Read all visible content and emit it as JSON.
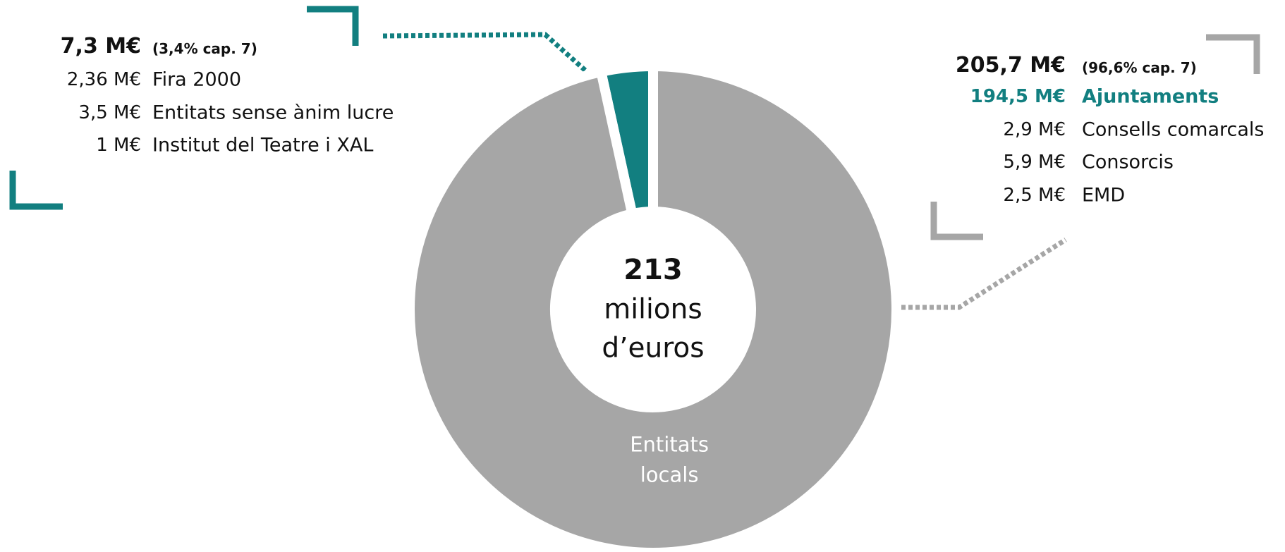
{
  "chart_data": {
    "type": "pie",
    "donut": true,
    "categories": [
      null,
      "Entitats locals"
    ],
    "values": [
      7.3,
      205.7
    ],
    "value_labels": [
      "7,3 M€",
      "205,7 M€"
    ],
    "colors": [
      "#127f80",
      "#a6a6a6"
    ],
    "shares": [
      "(3,4% cap. 7)",
      "(96,6% cap. 7)"
    ],
    "breakdowns": [
      [
        {
          "value": "2,36 M€",
          "label": "Fira 2000"
        },
        {
          "value": "3,5 M€",
          "label": "Entitats sense ànim lucre"
        },
        {
          "value": "1 M€",
          "label": "Institut del Teatre i XAL"
        }
      ],
      [
        {
          "value": "194,5 M€",
          "label": "Ajuntaments",
          "highlight": true
        },
        {
          "value": "2,9 M€",
          "label": "Consells comarcals"
        },
        {
          "value": "5,9 M€",
          "label": "Consorcis"
        },
        {
          "value": "2,5 M€",
          "label": "EMD"
        }
      ]
    ],
    "center": {
      "total": 213,
      "unit": [
        "milions",
        "d’euros"
      ]
    }
  }
}
